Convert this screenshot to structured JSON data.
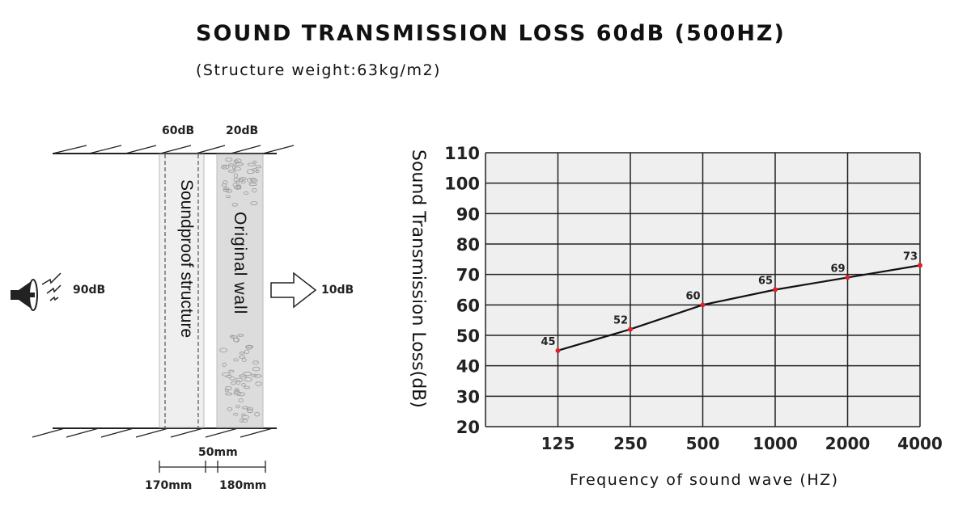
{
  "title": "SOUND TRANSMISSION LOSS 60dB (500HZ)",
  "subtitle": "(Structure weight:63kg/m2)",
  "diagram": {
    "top_labels": [
      "60dB",
      "20dB"
    ],
    "source_level": "90dB",
    "output_level": "10dB",
    "soundproof_label": "Soundproof structure",
    "wall_label": "Original wall",
    "dim_gap": "50mm",
    "dim_left": "170mm",
    "dim_right": "180mm",
    "icons": [
      "speaker-icon",
      "sound-wave-icon",
      "arrow-right-icon"
    ]
  },
  "chart_data": {
    "type": "line",
    "title": "",
    "xlabel": "Frequency of sound wave (HZ)",
    "ylabel": "Sound Transmission Loss(dB)",
    "categories": [
      "125",
      "250",
      "500",
      "1000",
      "2000",
      "4000"
    ],
    "values": [
      45,
      52,
      60,
      65,
      69,
      73
    ],
    "data_labels": [
      "45",
      "52",
      "60",
      "65",
      "69",
      "73"
    ],
    "ylim": [
      20,
      110
    ],
    "yticks": [
      "20",
      "30",
      "40",
      "50",
      "60",
      "70",
      "80",
      "90",
      "100",
      "110"
    ],
    "grid": true,
    "line_color": "#111111",
    "marker_color": "#e0202a",
    "plot_bg": "#efefef"
  }
}
